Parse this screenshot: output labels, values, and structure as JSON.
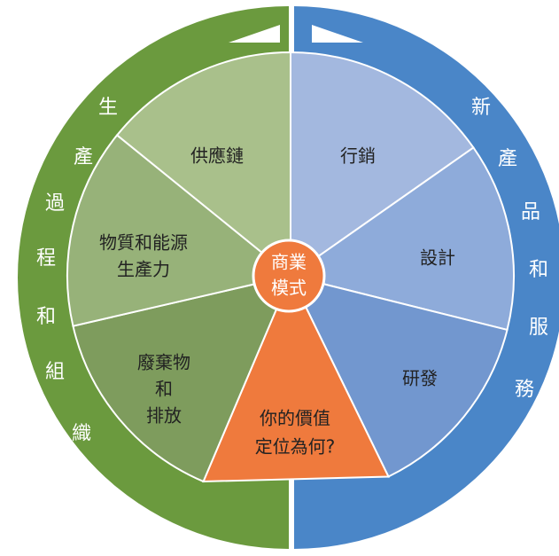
{
  "ring": {
    "left": [
      "生",
      "產",
      "過",
      "程",
      "和",
      "組",
      "織"
    ],
    "right": [
      "新",
      "產",
      "品",
      "和",
      "服",
      "務"
    ]
  },
  "center": {
    "lines": [
      "商業",
      "模式"
    ]
  },
  "segments": [
    {
      "lines": [
        "行銷"
      ]
    },
    {
      "lines": [
        "設計"
      ]
    },
    {
      "lines": [
        "研發"
      ]
    },
    {
      "lines": [
        "你的價值",
        "定位為何?"
      ]
    },
    {
      "lines": [
        "廢棄物",
        "和",
        "排放"
      ]
    },
    {
      "lines": [
        "物質和能源",
        "生產力"
      ]
    },
    {
      "lines": [
        "供應鏈"
      ]
    }
  ]
}
